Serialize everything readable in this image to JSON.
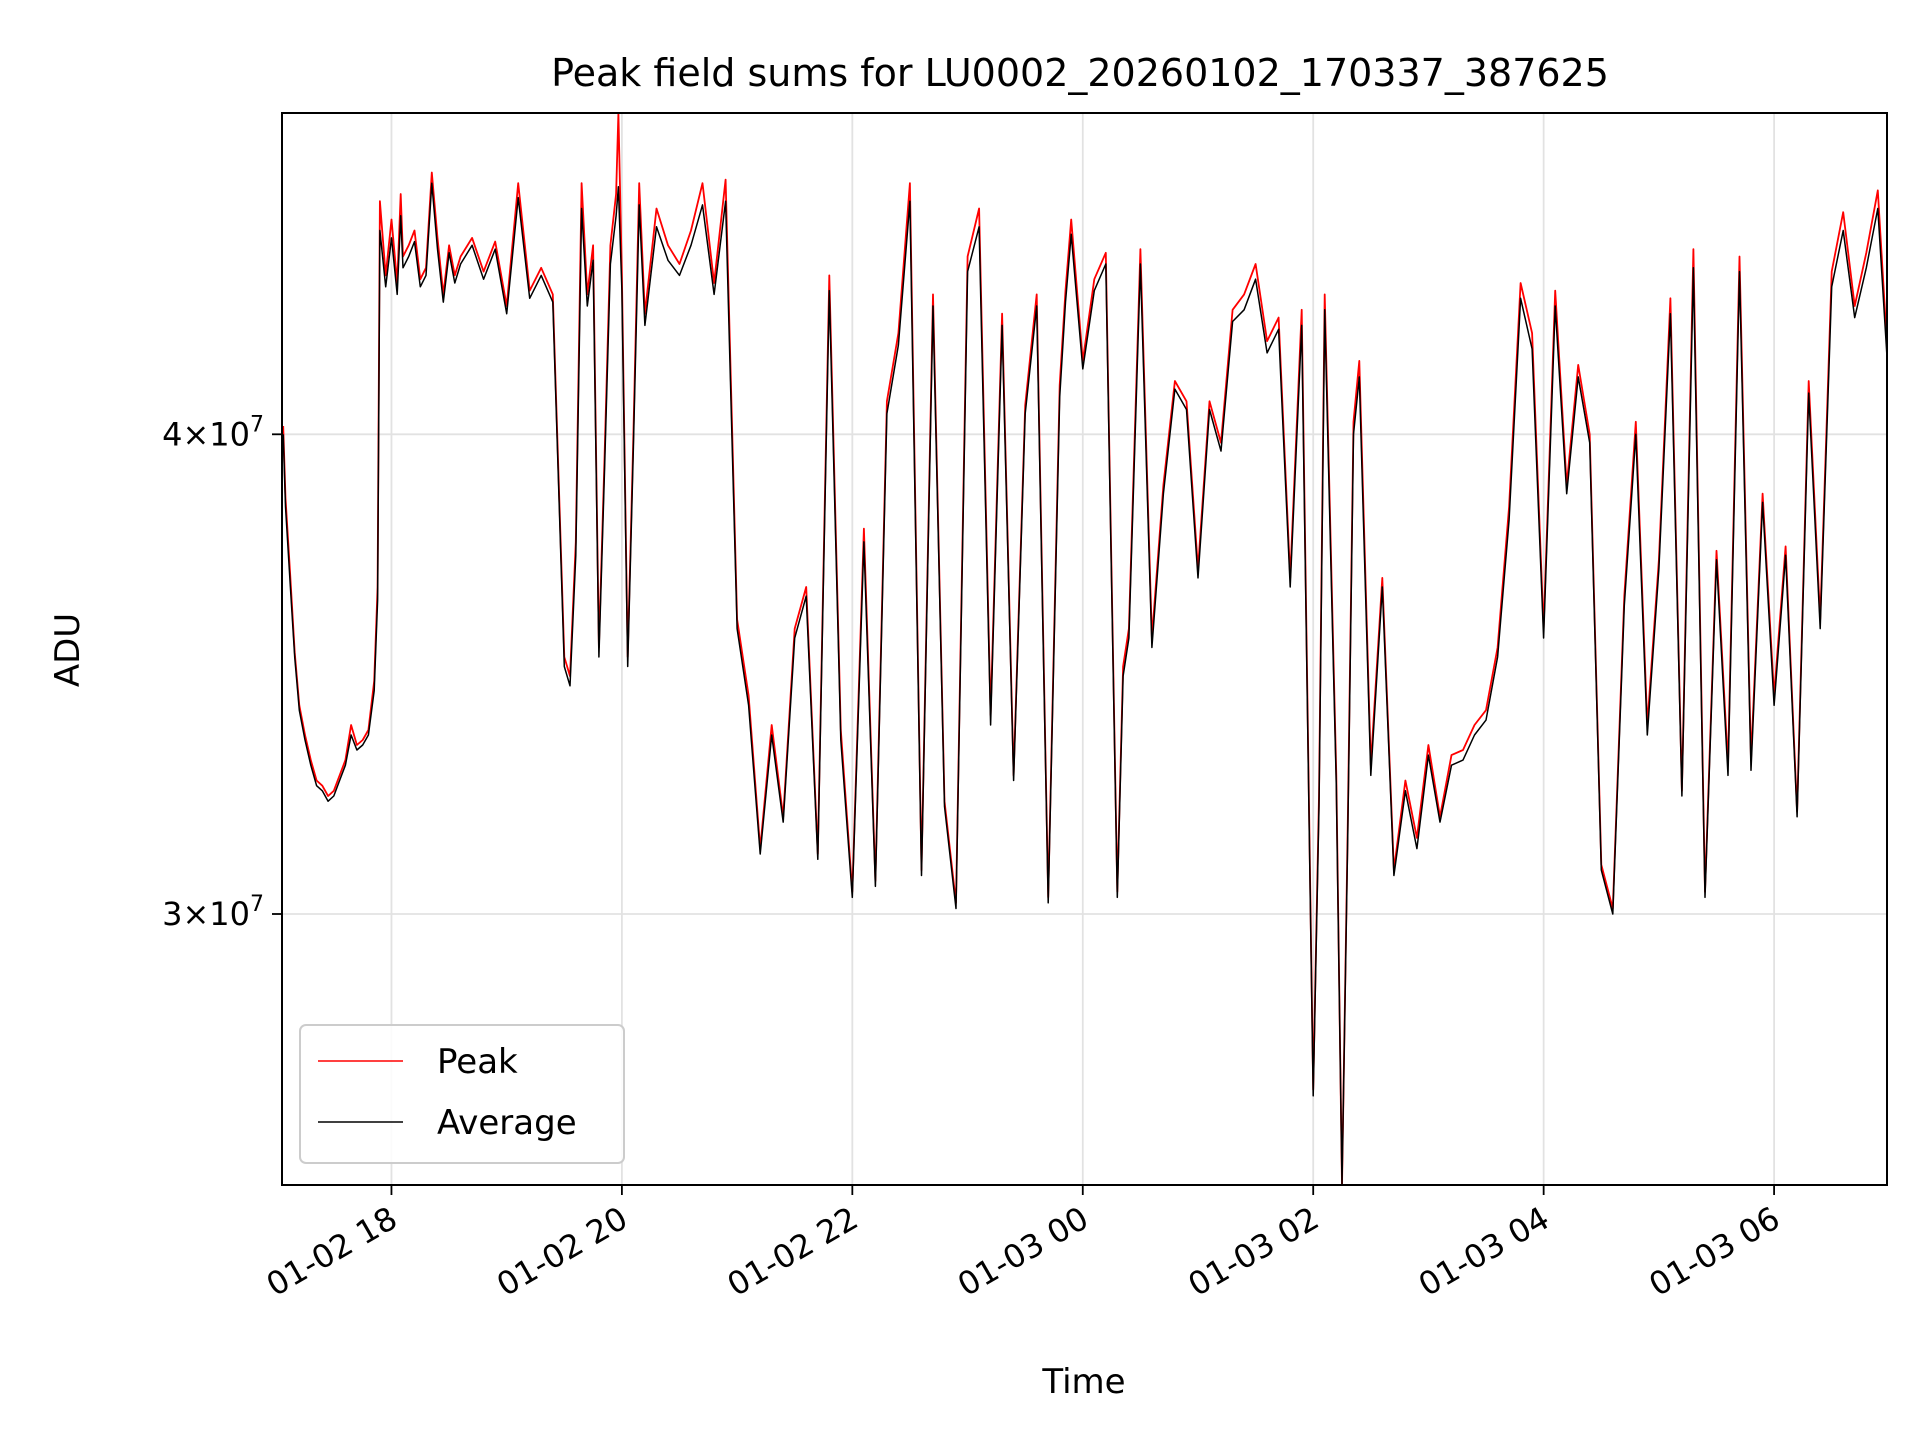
{
  "chart_data": {
    "type": "line",
    "title": "Peak field sums for LU0002_20260102_170337_387625",
    "xlabel": "Time",
    "ylabel": "ADU",
    "yscale": "log",
    "ylim": [
      25500000,
      48500000
    ],
    "xlim_hours": [
      17.05,
      30.98
    ],
    "grid": true,
    "legend_position": "lower-left",
    "x_ticks": [
      {
        "hours": 18,
        "label": "01-02 18"
      },
      {
        "hours": 20,
        "label": "01-02 20"
      },
      {
        "hours": 22,
        "label": "01-02 22"
      },
      {
        "hours": 24,
        "label": "01-03 00"
      },
      {
        "hours": 26,
        "label": "01-03 02"
      },
      {
        "hours": 28,
        "label": "01-03 04"
      },
      {
        "hours": 30,
        "label": "01-03 06"
      }
    ],
    "y_ticks": [
      {
        "value": 30000000,
        "base": "3",
        "exponent": "7"
      },
      {
        "value": 40000000,
        "base": "4",
        "exponent": "7"
      }
    ],
    "series": [
      {
        "name": "Peak",
        "color": "#ff0000",
        "x_hours": [
          17.06,
          17.08,
          17.12,
          17.16,
          17.2,
          17.25,
          17.3,
          17.35,
          17.4,
          17.45,
          17.5,
          17.55,
          17.6,
          17.65,
          17.7,
          17.75,
          17.8,
          17.85,
          17.88,
          17.9,
          17.95,
          18.0,
          18.05,
          18.08,
          18.1,
          18.15,
          18.2,
          18.25,
          18.3,
          18.35,
          18.4,
          18.45,
          18.5,
          18.55,
          18.6,
          18.7,
          18.8,
          18.9,
          19.0,
          19.1,
          19.2,
          19.3,
          19.4,
          19.5,
          19.55,
          19.6,
          19.65,
          19.7,
          19.75,
          19.8,
          19.85,
          19.9,
          19.95,
          19.97,
          20.0,
          20.05,
          20.1,
          20.15,
          20.2,
          20.3,
          20.4,
          20.5,
          20.6,
          20.7,
          20.8,
          20.9,
          21.0,
          21.1,
          21.2,
          21.3,
          21.4,
          21.5,
          21.6,
          21.7,
          21.8,
          21.9,
          22.0,
          22.1,
          22.2,
          22.3,
          22.4,
          22.5,
          22.6,
          22.7,
          22.8,
          22.9,
          23.0,
          23.1,
          23.2,
          23.3,
          23.4,
          23.5,
          23.6,
          23.7,
          23.8,
          23.85,
          23.9,
          24.0,
          24.1,
          24.2,
          24.3,
          24.35,
          24.4,
          24.5,
          24.6,
          24.7,
          24.8,
          24.9,
          25.0,
          25.1,
          25.2,
          25.3,
          25.4,
          25.5,
          25.6,
          25.7,
          25.8,
          25.9,
          26.0,
          26.05,
          26.1,
          26.2,
          26.25,
          26.3,
          26.35,
          26.4,
          26.5,
          26.6,
          26.7,
          26.8,
          26.9,
          27.0,
          27.1,
          27.2,
          27.3,
          27.4,
          27.5,
          27.6,
          27.7,
          27.8,
          27.9,
          28.0,
          28.1,
          28.2,
          28.3,
          28.4,
          28.5,
          28.6,
          28.7,
          28.8,
          28.9,
          29.0,
          29.1,
          29.2,
          29.3,
          29.4,
          29.5,
          29.6,
          29.7,
          29.8,
          29.9,
          30.0,
          30.1,
          30.2,
          30.3,
          30.4,
          30.5,
          30.6,
          30.7,
          30.8,
          30.9,
          30.98
        ],
        "values": [
          40200000,
          38500000,
          36800000,
          35100000,
          34000000,
          33400000,
          32900000,
          32500000,
          32400000,
          32200000,
          32300000,
          32600000,
          32900000,
          33600000,
          33200000,
          33300000,
          33500000,
          34500000,
          36500000,
          46000000,
          44000000,
          45500000,
          43800000,
          46200000,
          44500000,
          44800000,
          45200000,
          43900000,
          44200000,
          46800000,
          45000000,
          43500000,
          44800000,
          44000000,
          44500000,
          45000000,
          44100000,
          44900000,
          43200000,
          46500000,
          43600000,
          44200000,
          43500000,
          35000000,
          34600000,
          37500000,
          46500000,
          43500000,
          44800000,
          35200000,
          39500000,
          44800000,
          46200000,
          48500000,
          44000000,
          35000000,
          40000000,
          46500000,
          43000000,
          45800000,
          44800000,
          44300000,
          45200000,
          46500000,
          43800000,
          46600000,
          35800000,
          34200000,
          31200000,
          33600000,
          31800000,
          35600000,
          36500000,
          31100000,
          44000000,
          33500000,
          30400000,
          37800000,
          30600000,
          40800000,
          42500000,
          46500000,
          30800000,
          43500000,
          32100000,
          30200000,
          44500000,
          45800000,
          33800000,
          43000000,
          32600000,
          40700000,
          43500000,
          30300000,
          41200000,
          43600000,
          45500000,
          41800000,
          43900000,
          44600000,
          30400000,
          34800000,
          35600000,
          44700000,
          35400000,
          38800000,
          41300000,
          40800000,
          36900000,
          40800000,
          39800000,
          43100000,
          43500000,
          44300000,
          42300000,
          42900000,
          36700000,
          43100000,
          27000000,
          32200000,
          43500000,
          32600000,
          25500000,
          31700000,
          40300000,
          41800000,
          32800000,
          36700000,
          30800000,
          32500000,
          31400000,
          33200000,
          31800000,
          33000000,
          33100000,
          33600000,
          33900000,
          35200000,
          38300000,
          43800000,
          42500000,
          35600000,
          43600000,
          38800000,
          41700000,
          40000000,
          30900000,
          30100000,
          36300000,
          40300000,
          33600000,
          37100000,
          43400000,
          32300000,
          44700000,
          30400000,
          37300000,
          32800000,
          44500000,
          32900000,
          38600000,
          34200000,
          37400000,
          31900000,
          41300000,
          35800000,
          44100000,
          45700000,
          43200000,
          44600000,
          46300000,
          42200000
        ]
      },
      {
        "name": "Average",
        "color": "#000000",
        "x_hours": [
          17.06,
          17.08,
          17.12,
          17.16,
          17.2,
          17.25,
          17.3,
          17.35,
          17.4,
          17.45,
          17.5,
          17.55,
          17.6,
          17.65,
          17.7,
          17.75,
          17.8,
          17.85,
          17.88,
          17.9,
          17.95,
          18.0,
          18.05,
          18.08,
          18.1,
          18.15,
          18.2,
          18.25,
          18.3,
          18.35,
          18.4,
          18.45,
          18.5,
          18.55,
          18.6,
          18.7,
          18.8,
          18.9,
          19.0,
          19.1,
          19.2,
          19.3,
          19.4,
          19.5,
          19.55,
          19.6,
          19.65,
          19.7,
          19.75,
          19.8,
          19.85,
          19.9,
          19.95,
          19.97,
          20.0,
          20.05,
          20.1,
          20.15,
          20.2,
          20.3,
          20.4,
          20.5,
          20.6,
          20.7,
          20.8,
          20.9,
          21.0,
          21.1,
          21.2,
          21.3,
          21.4,
          21.5,
          21.6,
          21.7,
          21.8,
          21.9,
          22.0,
          22.1,
          22.2,
          22.3,
          22.4,
          22.5,
          22.6,
          22.7,
          22.8,
          22.9,
          23.0,
          23.1,
          23.2,
          23.3,
          23.4,
          23.5,
          23.6,
          23.7,
          23.8,
          23.85,
          23.9,
          24.0,
          24.1,
          24.2,
          24.3,
          24.35,
          24.4,
          24.5,
          24.6,
          24.7,
          24.8,
          24.9,
          25.0,
          25.1,
          25.2,
          25.3,
          25.4,
          25.5,
          25.6,
          25.7,
          25.8,
          25.9,
          26.0,
          26.05,
          26.1,
          26.2,
          26.25,
          26.3,
          26.35,
          26.4,
          26.5,
          26.6,
          26.7,
          26.8,
          26.9,
          27.0,
          27.1,
          27.2,
          27.3,
          27.4,
          27.5,
          27.6,
          27.7,
          27.8,
          27.9,
          28.0,
          28.1,
          28.2,
          28.3,
          28.4,
          28.5,
          28.6,
          28.7,
          28.8,
          28.9,
          29.0,
          29.1,
          29.2,
          29.3,
          29.4,
          29.5,
          29.6,
          29.7,
          29.8,
          29.9,
          30.0,
          30.1,
          30.2,
          30.3,
          30.4,
          30.5,
          30.6,
          30.7,
          30.8,
          30.9,
          30.98
        ],
        "values": [
          40000000,
          38300000,
          36600000,
          35000000,
          33900000,
          33300000,
          32800000,
          32400000,
          32300000,
          32100000,
          32200000,
          32500000,
          32800000,
          33400000,
          33100000,
          33200000,
          33400000,
          34300000,
          36200000,
          45200000,
          43700000,
          45000000,
          43500000,
          45600000,
          44200000,
          44500000,
          44900000,
          43700000,
          44000000,
          46500000,
          44700000,
          43300000,
          44600000,
          43800000,
          44300000,
          44800000,
          43900000,
          44700000,
          43000000,
          46100000,
          43400000,
          44000000,
          43300000,
          34800000,
          34400000,
          37200000,
          45800000,
          43200000,
          44400000,
          35000000,
          39200000,
          44300000,
          45600000,
          46400000,
          43600000,
          34800000,
          39700000,
          45900000,
          42700000,
          45300000,
          44400000,
          44000000,
          44800000,
          45900000,
          43500000,
          46000000,
          35600000,
          34000000,
          31100000,
          33400000,
          31700000,
          35400000,
          36300000,
          31000000,
          43600000,
          33300000,
          30300000,
          37500000,
          30500000,
          40500000,
          42200000,
          46000000,
          30700000,
          43200000,
          32000000,
          30100000,
          44100000,
          45300000,
          33600000,
          42700000,
          32500000,
          40500000,
          43200000,
          30200000,
          40900000,
          43300000,
          45100000,
          41600000,
          43600000,
          44300000,
          30300000,
          34600000,
          35400000,
          44300000,
          35200000,
          38600000,
          41100000,
          40600000,
          36700000,
          40600000,
          39600000,
          42800000,
          43100000,
          43900000,
          42000000,
          42600000,
          36500000,
          42700000,
          26900000,
          32000000,
          43100000,
          32400000,
          25500000,
          31500000,
          40000000,
          41400000,
          32600000,
          36500000,
          30700000,
          32300000,
          31200000,
          33000000,
          31700000,
          32800000,
          32900000,
          33400000,
          33700000,
          35000000,
          38000000,
          43400000,
          42100000,
          35400000,
          43200000,
          38600000,
          41400000,
          39800000,
          30800000,
          30000000,
          36100000,
          40000000,
          33400000,
          36900000,
          43000000,
          32200000,
          44200000,
          30300000,
          37100000,
          32600000,
          44100000,
          32700000,
          38400000,
          34000000,
          37200000,
          31800000,
          41000000,
          35600000,
          43700000,
          45200000,
          42900000,
          44200000,
          45800000,
          41900000
        ]
      }
    ]
  }
}
